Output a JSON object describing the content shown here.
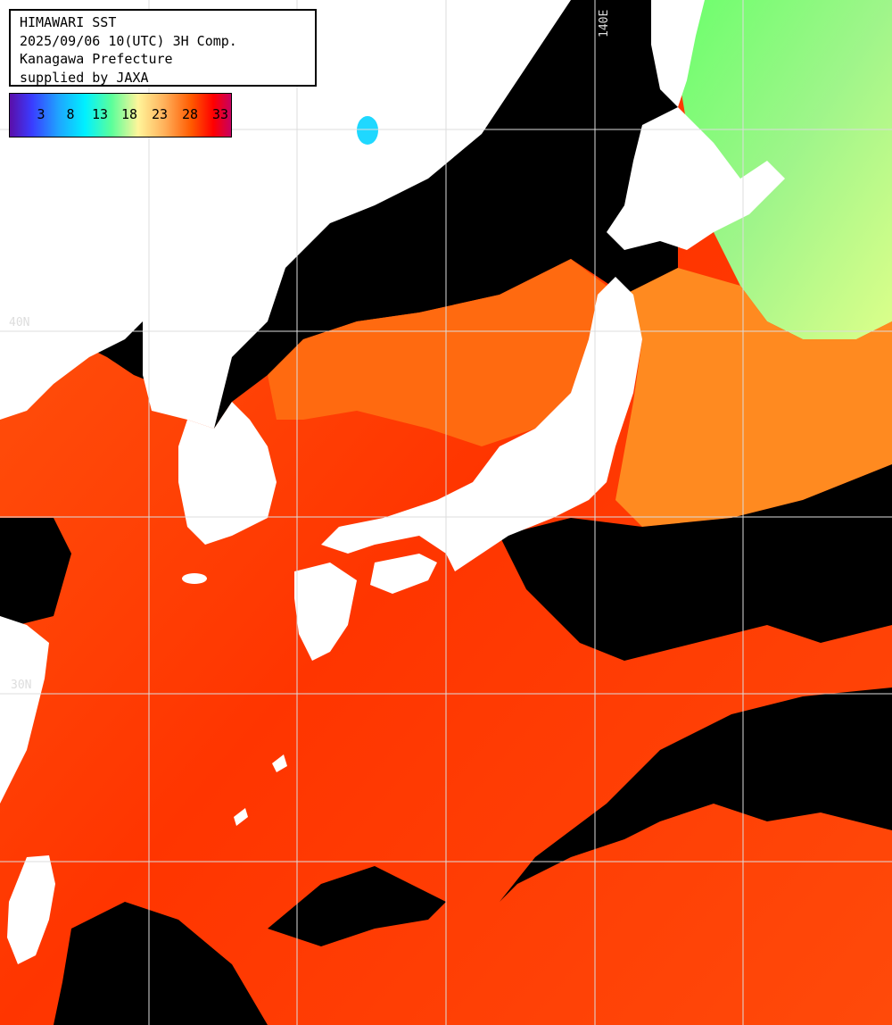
{
  "title_block": {
    "line1": "HIMAWARI SST",
    "line2": "2025/09/06 10(UTC) 3H Comp.",
    "line3": "Kanagawa Prefecture",
    "line4": "supplied by JAXA"
  },
  "colorbar": {
    "ticks": [
      "3",
      "8",
      "13",
      "18",
      "23",
      "28",
      "33"
    ]
  },
  "grid_labels": {
    "lon_140": "140E",
    "lat_40": "40N",
    "lat_30": "30N"
  },
  "colors": {
    "land": "#ffffff",
    "cloud": "#000000",
    "warm_sea": "#ff3a00",
    "mid_sea": "#ff7a10",
    "cool_sea": "#8ef58e",
    "grid": "#dcdcdc"
  }
}
